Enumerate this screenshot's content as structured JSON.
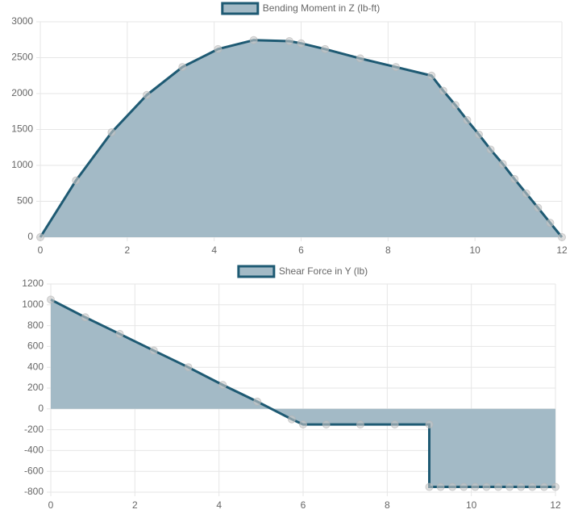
{
  "chart_data": [
    {
      "type": "line",
      "x": [
        0,
        0.82,
        1.64,
        2.45,
        3.27,
        4.09,
        4.91,
        5.73,
        6,
        6.55,
        7.36,
        8.18,
        9,
        9.27,
        9.55,
        9.82,
        10.09,
        10.36,
        10.64,
        10.91,
        11.18,
        11.45,
        11.73,
        12
      ],
      "series": [
        {
          "name": "Bending Moment in Z (lb-ft)",
          "color": "#1e5a73",
          "fill_color": "#a3bac6",
          "values": [
            0,
            790,
            1460,
            1980,
            2370,
            2620,
            2745,
            2730,
            2700,
            2620,
            2490,
            2370,
            2250,
            2040,
            1840,
            1630,
            1430,
            1220,
            1020,
            810,
            610,
            410,
            200,
            0
          ]
        }
      ],
      "xlim": [
        0,
        12
      ],
      "xticks": [
        0,
        2,
        4,
        6,
        8,
        10,
        12
      ],
      "ylim": [
        0,
        3000
      ],
      "yticks": [
        0,
        500,
        1000,
        1500,
        2000,
        2500,
        3000
      ],
      "grid": true,
      "fill": true,
      "legend": "top"
    },
    {
      "type": "line",
      "x": [
        0,
        0.82,
        1.64,
        2.45,
        3.27,
        4.09,
        4.91,
        5.73,
        6,
        6.55,
        7.36,
        8.18,
        9,
        9,
        9.27,
        9.55,
        9.82,
        10.09,
        10.36,
        10.64,
        10.91,
        11.18,
        11.45,
        11.73,
        12
      ],
      "series": [
        {
          "name": "Shear Force in Y (lb)",
          "color": "#1e5a73",
          "fill_color": "#a3bac6",
          "values": [
            1050,
            880,
            720,
            560,
            400,
            230,
            70,
            -100,
            -150,
            -150,
            -150,
            -150,
            -150,
            -750,
            -750,
            -750,
            -750,
            -750,
            -750,
            -750,
            -750,
            -750,
            -750,
            -750,
            -750
          ]
        }
      ],
      "xlim": [
        0,
        12
      ],
      "xticks": [
        0,
        2,
        4,
        6,
        8,
        10,
        12
      ],
      "ylim": [
        -800,
        1200
      ],
      "yticks": [
        -800,
        -600,
        -400,
        -200,
        0,
        200,
        400,
        600,
        800,
        1000,
        1200
      ],
      "grid": true,
      "fill": true,
      "legend": "top"
    }
  ]
}
